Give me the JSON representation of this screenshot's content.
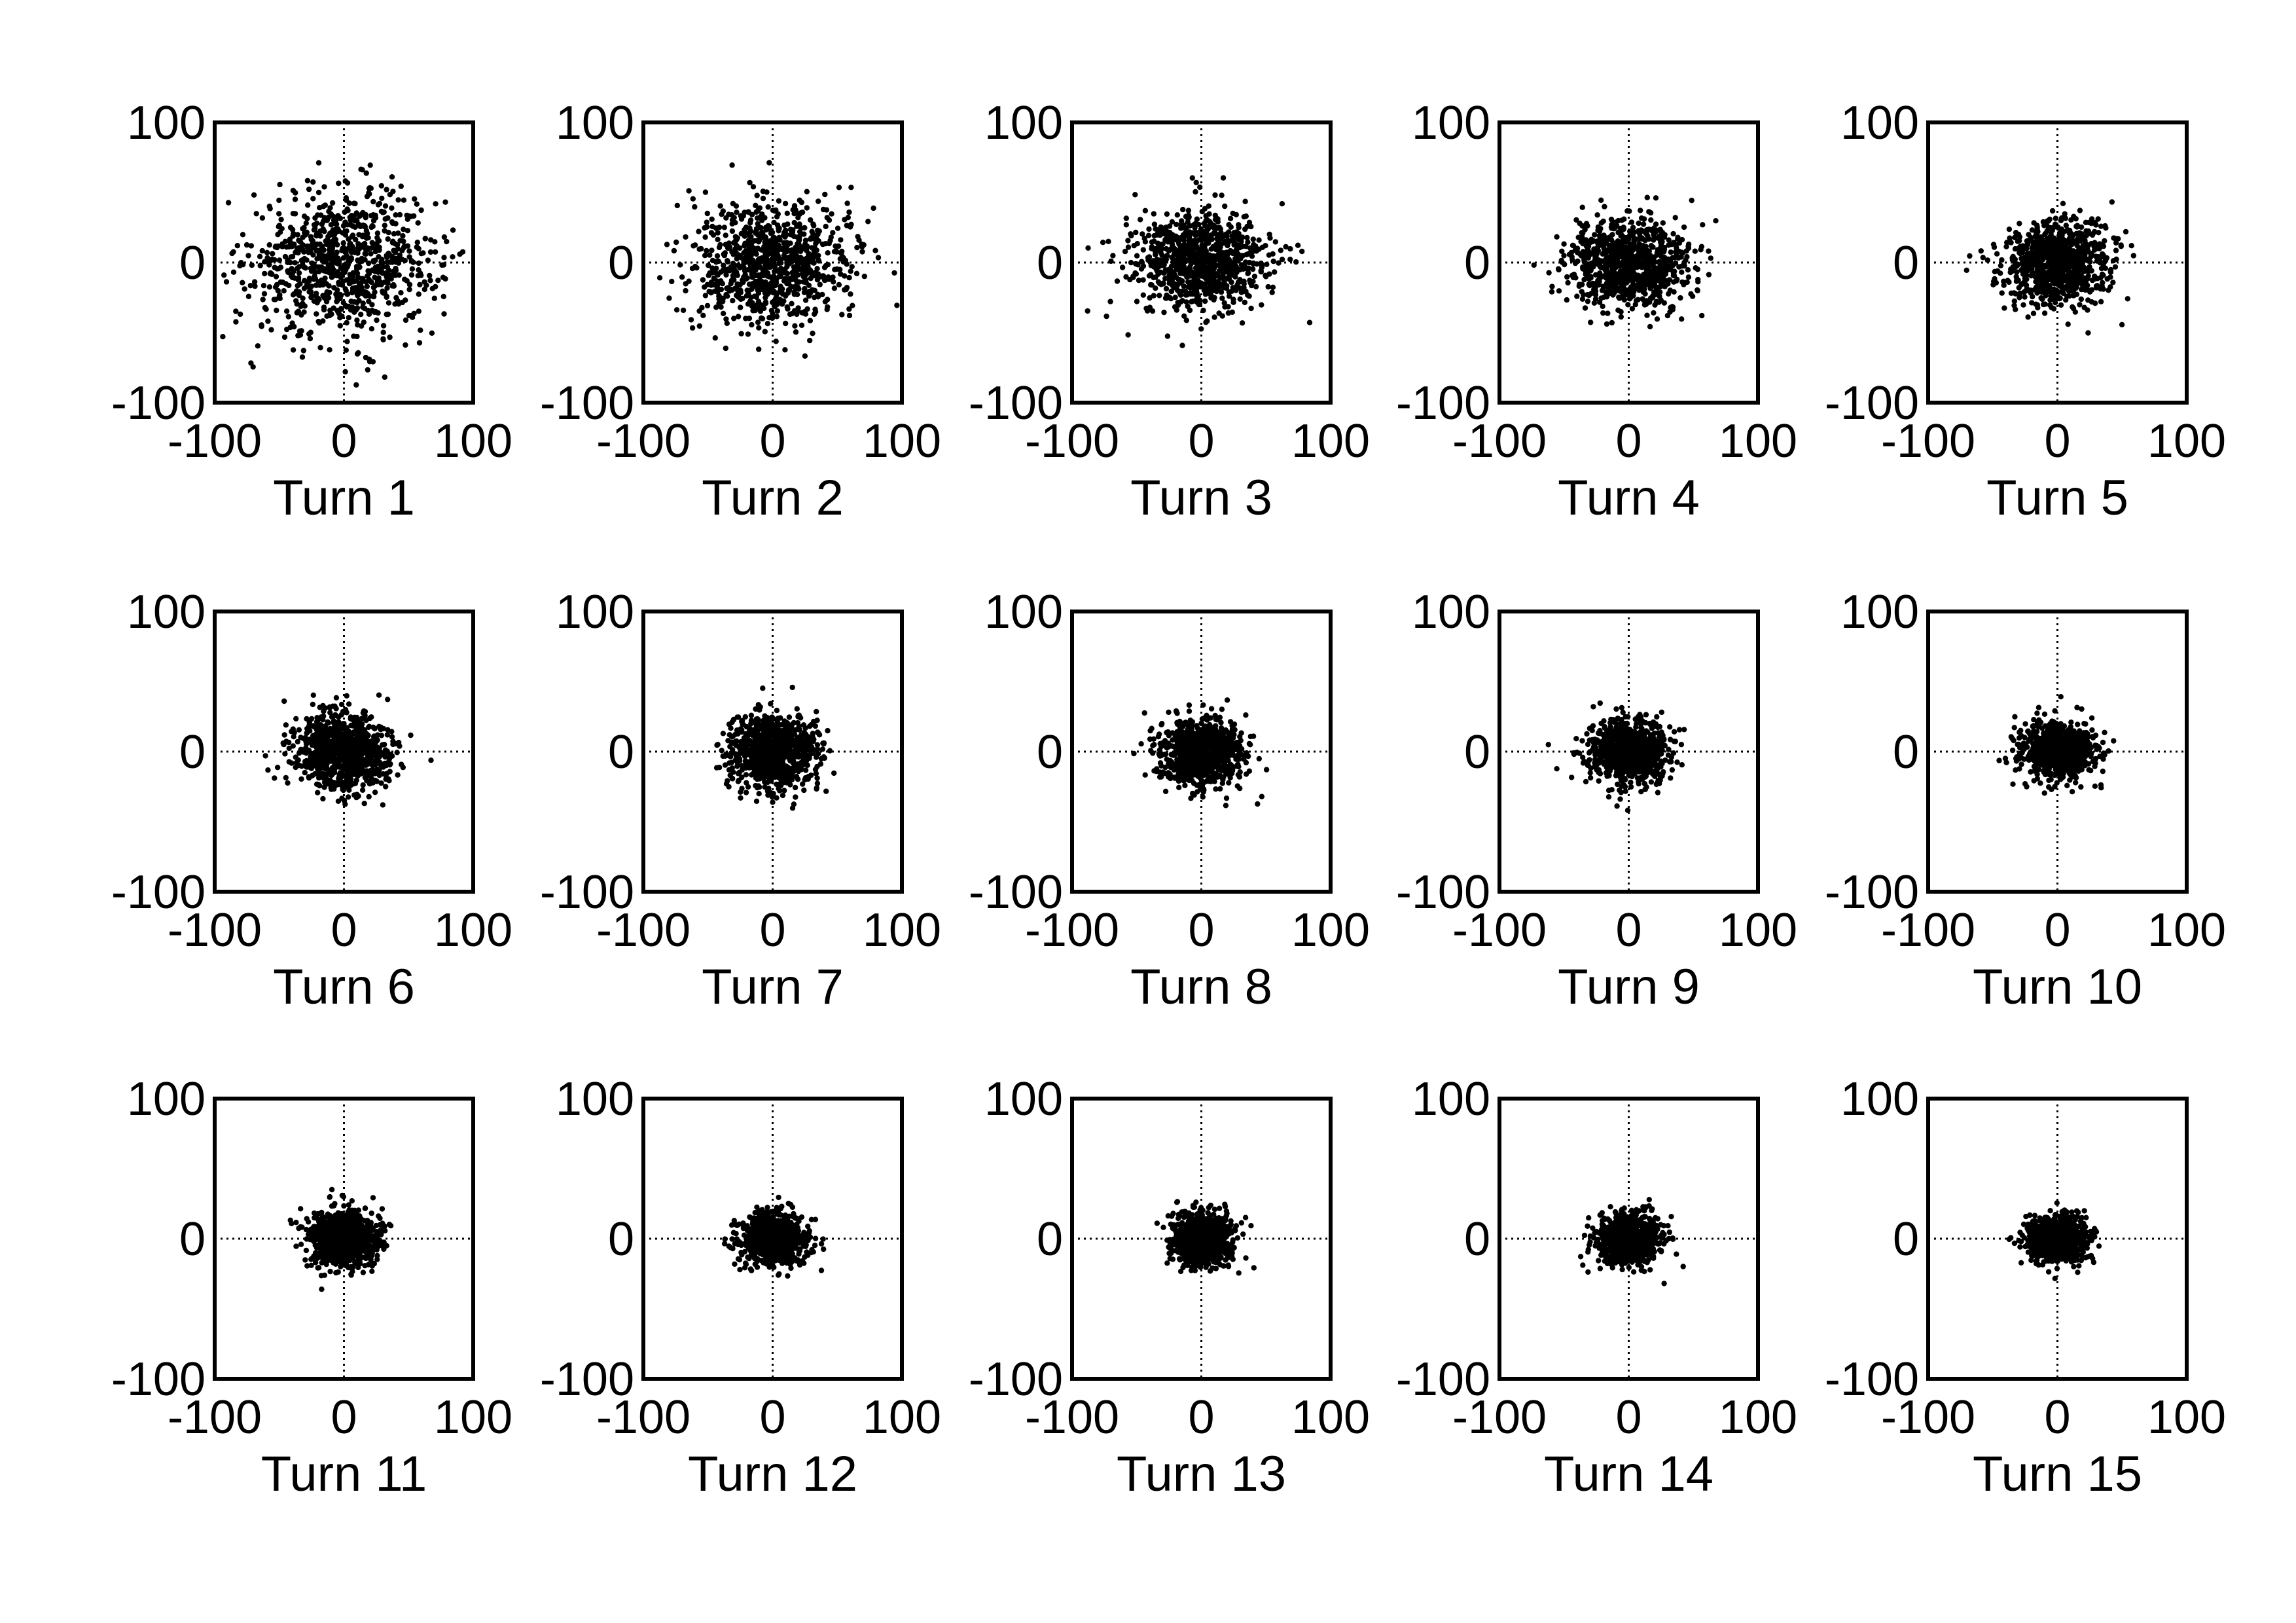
{
  "chart_data": [
    {
      "type": "scatter",
      "xlabel": "Turn 1",
      "xlim": [
        -100,
        100
      ],
      "ylim": [
        -100,
        100
      ],
      "xticks": [
        "-100",
        "0",
        "100"
      ],
      "yticks": [
        "-100",
        "0",
        "100"
      ],
      "spread": {
        "x_std": 36,
        "y_std": 26
      },
      "n_points": 900
    },
    {
      "type": "scatter",
      "xlabel": "Turn 2",
      "xlim": [
        -100,
        100
      ],
      "ylim": [
        -100,
        100
      ],
      "xticks": [
        "-100",
        "0",
        "100"
      ],
      "yticks": [
        "-100",
        "0",
        "100"
      ],
      "spread": {
        "x_std": 30,
        "y_std": 22
      },
      "n_points": 900
    },
    {
      "type": "scatter",
      "xlabel": "Turn 3",
      "xlim": [
        -100,
        100
      ],
      "ylim": [
        -100,
        100
      ],
      "xticks": [
        "-100",
        "0",
        "100"
      ],
      "yticks": [
        "-100",
        "0",
        "100"
      ],
      "spread": {
        "x_std": 26,
        "y_std": 18
      },
      "n_points": 900
    },
    {
      "type": "scatter",
      "xlabel": "Turn 4",
      "xlim": [
        -100,
        100
      ],
      "ylim": [
        -100,
        100
      ],
      "xticks": [
        "-100",
        "0",
        "100"
      ],
      "yticks": [
        "-100",
        "0",
        "100"
      ],
      "spread": {
        "x_std": 23,
        "y_std": 16
      },
      "n_points": 900
    },
    {
      "type": "scatter",
      "xlabel": "Turn 5",
      "xlim": [
        -100,
        100
      ],
      "ylim": [
        -100,
        100
      ],
      "xticks": [
        "-100",
        "0",
        "100"
      ],
      "yticks": [
        "-100",
        "0",
        "100"
      ],
      "spread": {
        "x_std": 20,
        "y_std": 15
      },
      "n_points": 900
    },
    {
      "type": "scatter",
      "xlabel": "Turn 6",
      "xlim": [
        -100,
        100
      ],
      "ylim": [
        -100,
        100
      ],
      "xticks": [
        "-100",
        "0",
        "100"
      ],
      "yticks": [
        "-100",
        "0",
        "100"
      ],
      "spread": {
        "x_std": 18,
        "y_std": 14
      },
      "n_points": 900
    },
    {
      "type": "scatter",
      "xlabel": "Turn 7",
      "xlim": [
        -100,
        100
      ],
      "ylim": [
        -100,
        100
      ],
      "xticks": [
        "-100",
        "0",
        "100"
      ],
      "yticks": [
        "-100",
        "0",
        "100"
      ],
      "spread": {
        "x_std": 17,
        "y_std": 13
      },
      "n_points": 900
    },
    {
      "type": "scatter",
      "xlabel": "Turn 8",
      "xlim": [
        -100,
        100
      ],
      "ylim": [
        -100,
        100
      ],
      "xticks": [
        "-100",
        "0",
        "100"
      ],
      "yticks": [
        "-100",
        "0",
        "100"
      ],
      "spread": {
        "x_std": 16,
        "y_std": 12
      },
      "n_points": 900
    },
    {
      "type": "scatter",
      "xlabel": "Turn 9",
      "xlim": [
        -100,
        100
      ],
      "ylim": [
        -100,
        100
      ],
      "xticks": [
        "-100",
        "0",
        "100"
      ],
      "yticks": [
        "-100",
        "0",
        "100"
      ],
      "spread": {
        "x_std": 15,
        "y_std": 11
      },
      "n_points": 900
    },
    {
      "type": "scatter",
      "xlabel": "Turn 10",
      "xlim": [
        -100,
        100
      ],
      "ylim": [
        -100,
        100
      ],
      "xticks": [
        "-100",
        "0",
        "100"
      ],
      "yticks": [
        "-100",
        "0",
        "100"
      ],
      "spread": {
        "x_std": 14,
        "y_std": 10
      },
      "n_points": 900
    },
    {
      "type": "scatter",
      "xlabel": "Turn 11",
      "xlim": [
        -100,
        100
      ],
      "ylim": [
        -100,
        100
      ],
      "xticks": [
        "-100",
        "0",
        "100"
      ],
      "yticks": [
        "-100",
        "0",
        "100"
      ],
      "spread": {
        "x_std": 13,
        "y_std": 10
      },
      "n_points": 900
    },
    {
      "type": "scatter",
      "xlabel": "Turn 12",
      "xlim": [
        -100,
        100
      ],
      "ylim": [
        -100,
        100
      ],
      "xticks": [
        "-100",
        "0",
        "100"
      ],
      "yticks": [
        "-100",
        "0",
        "100"
      ],
      "spread": {
        "x_std": 12,
        "y_std": 9
      },
      "n_points": 900
    },
    {
      "type": "scatter",
      "xlabel": "Turn 13",
      "xlim": [
        -100,
        100
      ],
      "ylim": [
        -100,
        100
      ],
      "xticks": [
        "-100",
        "0",
        "100"
      ],
      "yticks": [
        "-100",
        "0",
        "100"
      ],
      "spread": {
        "x_std": 12,
        "y_std": 9
      },
      "n_points": 900
    },
    {
      "type": "scatter",
      "xlabel": "Turn 14",
      "xlim": [
        -100,
        100
      ],
      "ylim": [
        -100,
        100
      ],
      "xticks": [
        "-100",
        "0",
        "100"
      ],
      "yticks": [
        "-100",
        "0",
        "100"
      ],
      "spread": {
        "x_std": 12,
        "y_std": 9
      },
      "n_points": 900
    },
    {
      "type": "scatter",
      "xlabel": "Turn 15",
      "xlim": [
        -100,
        100
      ],
      "ylim": [
        -100,
        100
      ],
      "xticks": [
        "-100",
        "0",
        "100"
      ],
      "yticks": [
        "-100",
        "0",
        "100"
      ],
      "spread": {
        "x_std": 11,
        "y_std": 8
      },
      "n_points": 900
    }
  ]
}
